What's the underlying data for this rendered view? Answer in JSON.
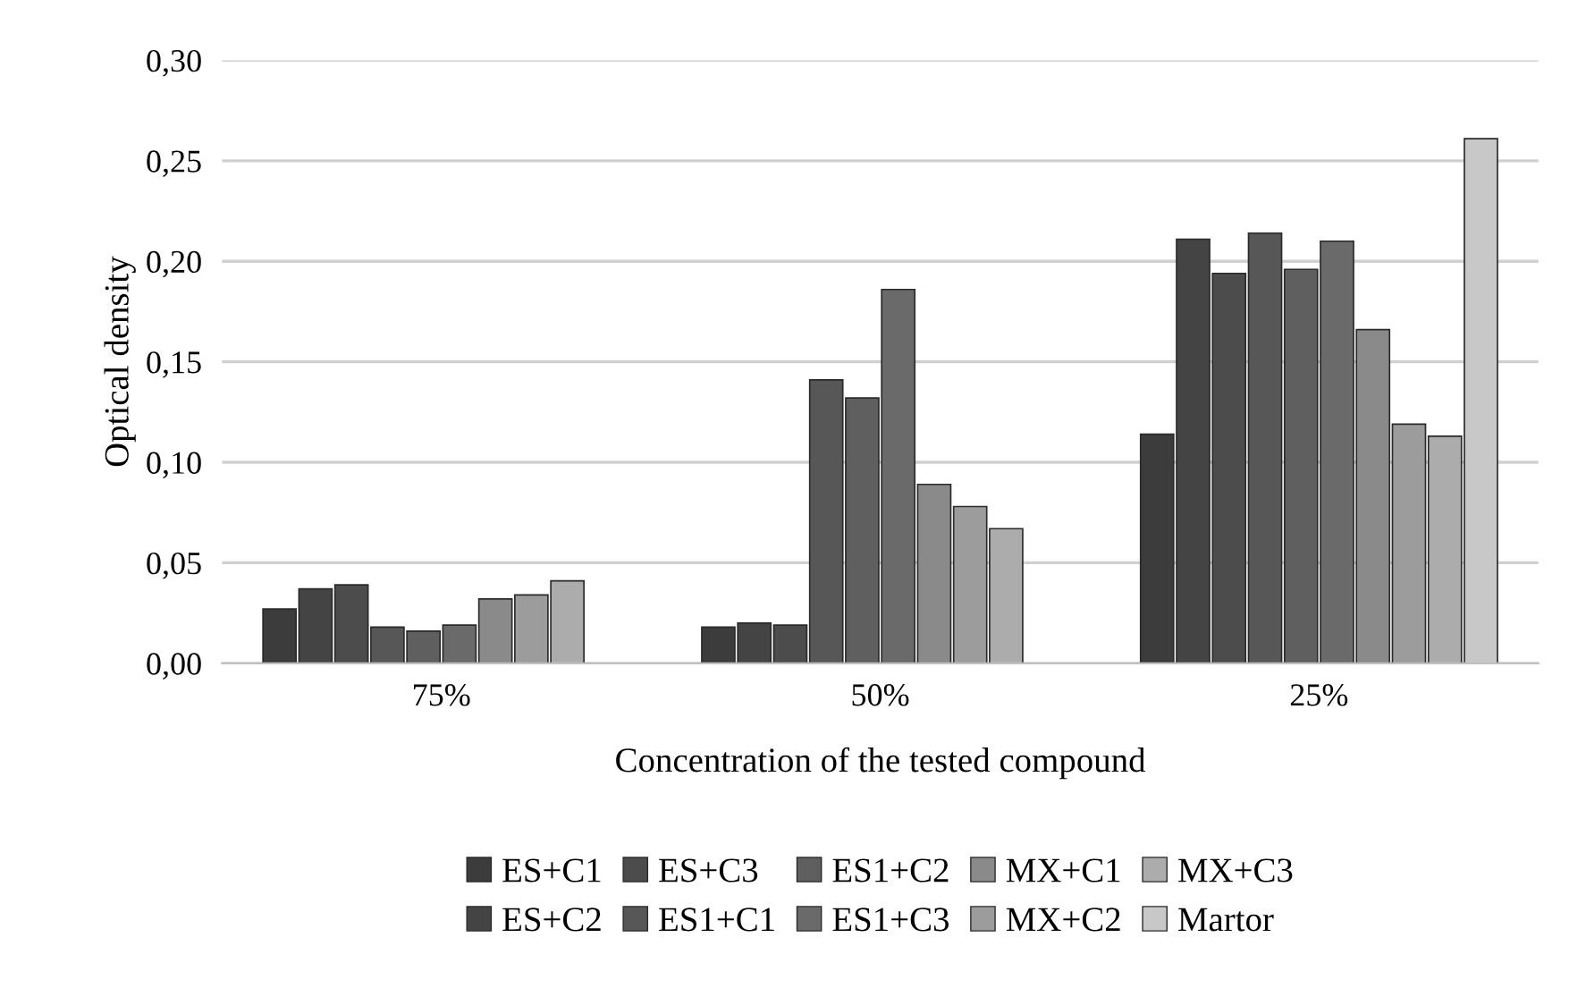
{
  "chart_data": {
    "type": "bar",
    "xlabel": "Concentration of the tested compound",
    "ylabel": "Optical density",
    "categories": [
      "75%",
      "50%",
      "25%"
    ],
    "series": [
      {
        "name": "ES+C1",
        "color": "#3c3c3c",
        "values": [
          0.027,
          0.018,
          0.114
        ]
      },
      {
        "name": "ES+C2",
        "color": "#444444",
        "values": [
          0.037,
          0.02,
          0.211
        ]
      },
      {
        "name": "ES+C3",
        "color": "#4c4c4c",
        "values": [
          0.039,
          0.019,
          0.194
        ]
      },
      {
        "name": "ES1+C1",
        "color": "#575757",
        "values": [
          0.018,
          0.141,
          0.214
        ]
      },
      {
        "name": "ES1+C2",
        "color": "#5f5f5f",
        "values": [
          0.016,
          0.132,
          0.196
        ]
      },
      {
        "name": "ES1+C3",
        "color": "#6a6a6a",
        "values": [
          0.019,
          0.186,
          0.21
        ]
      },
      {
        "name": "MX+C1",
        "color": "#8a8a8a",
        "values": [
          0.032,
          0.089,
          0.166
        ]
      },
      {
        "name": "MX+C2",
        "color": "#9c9c9c",
        "values": [
          0.034,
          0.078,
          0.119
        ]
      },
      {
        "name": "MX+C3",
        "color": "#acacac",
        "values": [
          0.041,
          0.067,
          0.113
        ]
      },
      {
        "name": "Martor",
        "color": "#c8c8c8",
        "values": [
          null,
          null,
          0.261
        ]
      }
    ],
    "ylim": [
      0,
      0.3
    ],
    "yticks": [
      {
        "value": 0,
        "label": "0,00"
      },
      {
        "value": 0.05,
        "label": "0,05"
      },
      {
        "value": 0.1,
        "label": "0,10"
      },
      {
        "value": 0.15,
        "label": "0,15"
      },
      {
        "value": 0.2,
        "label": "0,20"
      },
      {
        "value": 0.25,
        "label": "0,25"
      },
      {
        "value": 0.3,
        "label": "0,30"
      }
    ],
    "grid": "y",
    "legend": "bottom"
  }
}
